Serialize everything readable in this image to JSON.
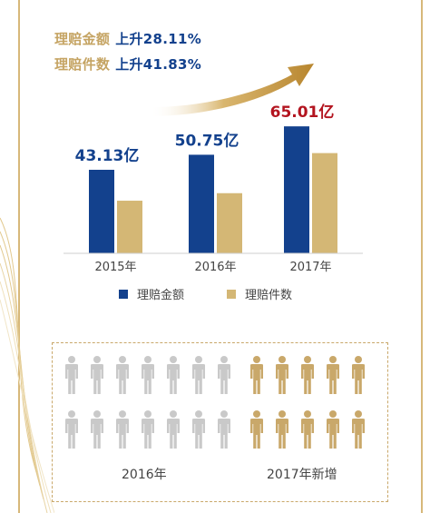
{
  "headline": {
    "claims_amount_label": "理赔金额",
    "claims_amount_change": "上升28.11%",
    "claims_count_label": "理赔件数",
    "claims_count_change": "上升41.83%"
  },
  "colors": {
    "amount": "#13418d",
    "count": "#d4b775",
    "highlight": "#b3141f",
    "person_2016": "#c9c9c9",
    "person_2017_new": "#c9a86a",
    "frame": "#d7b87a"
  },
  "chart_data": {
    "type": "bar",
    "categories": [
      "2015年",
      "2016年",
      "2017年"
    ],
    "series": [
      {
        "name": "理赔金额",
        "values": [
          43.13,
          50.75,
          65.01
        ]
      },
      {
        "name": "理赔件数",
        "values": [
          null,
          null,
          null
        ]
      }
    ],
    "relative_heights": {
      "理赔金额": [
        1.0,
        1.18,
        1.52
      ],
      "理赔件数": [
        0.63,
        0.72,
        1.2
      ]
    },
    "data_labels": [
      "43.13亿",
      "50.75亿",
      "65.01亿"
    ],
    "highlighted_label_index": 2,
    "title": "",
    "xlabel": "",
    "ylabel": "",
    "grid": false,
    "legend_position": "bottom"
  },
  "legend": {
    "amount_label": "理赔金额",
    "count_label": "理赔件数"
  },
  "people": {
    "group_2016_label": "2016年",
    "group_2017_label": "2017年新增",
    "icons_2016": 14,
    "icons_2017_new": 10
  }
}
